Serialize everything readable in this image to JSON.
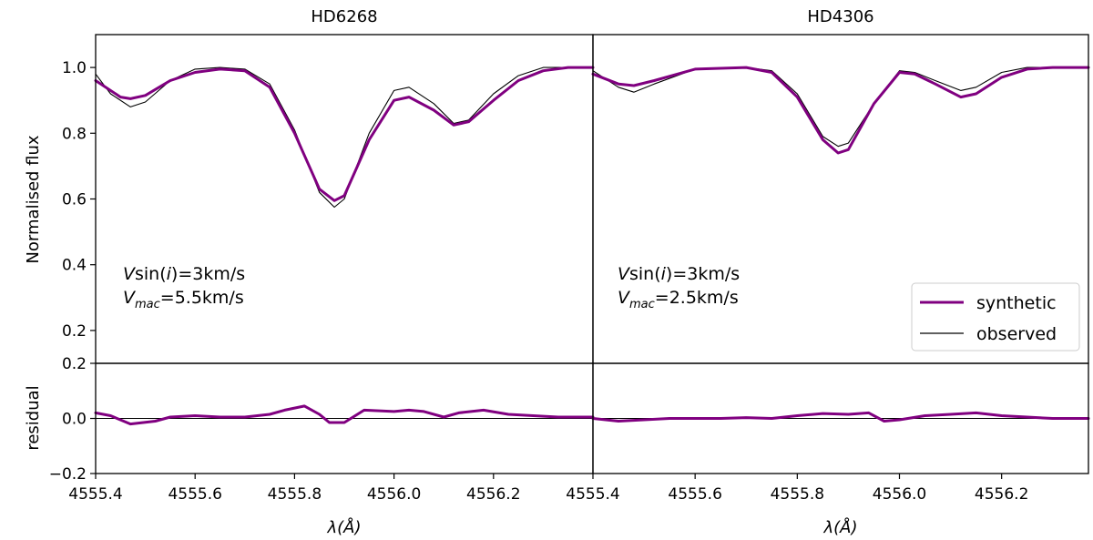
{
  "chart_data": [
    {
      "type": "line",
      "panel": "top-left",
      "title": "HD6268",
      "xlabel": "",
      "ylabel": "Normalised flux",
      "xlim": [
        4555.4,
        4556.4
      ],
      "ylim": [
        0.1,
        1.1
      ],
      "yticks": [
        0.2,
        0.4,
        0.6,
        0.8,
        1.0
      ],
      "ytick_labels": [
        "0.2",
        "0.4",
        "0.6",
        "0.8",
        "1.0"
      ],
      "annotation": {
        "vsini": "3km/s",
        "vmac": "5.5km/s"
      },
      "series": [
        {
          "name": "synthetic",
          "color": "#800080",
          "x": [
            4555.4,
            4555.45,
            4555.47,
            4555.5,
            4555.55,
            4555.6,
            4555.65,
            4555.7,
            4555.75,
            4555.8,
            4555.85,
            4555.88,
            4555.9,
            4555.95,
            4556.0,
            4556.03,
            4556.08,
            4556.12,
            4556.15,
            4556.2,
            4556.25,
            4556.3,
            4556.35,
            4556.4
          ],
          "y": [
            0.96,
            0.91,
            0.905,
            0.915,
            0.96,
            0.985,
            0.995,
            0.99,
            0.94,
            0.8,
            0.63,
            0.595,
            0.61,
            0.78,
            0.9,
            0.91,
            0.87,
            0.825,
            0.835,
            0.9,
            0.96,
            0.99,
            1.0,
            1.0
          ]
        },
        {
          "name": "observed",
          "color": "#000000",
          "x": [
            4555.4,
            4555.43,
            4555.47,
            4555.5,
            4555.55,
            4555.6,
            4555.65,
            4555.7,
            4555.75,
            4555.8,
            4555.85,
            4555.88,
            4555.9,
            4555.95,
            4556.0,
            4556.03,
            4556.08,
            4556.12,
            4556.15,
            4556.2,
            4556.25,
            4556.3,
            4556.35,
            4556.4
          ],
          "y": [
            0.98,
            0.92,
            0.88,
            0.895,
            0.96,
            0.995,
            1.0,
            0.995,
            0.95,
            0.81,
            0.62,
            0.575,
            0.6,
            0.8,
            0.93,
            0.94,
            0.89,
            0.83,
            0.84,
            0.92,
            0.975,
            1.0,
            1.0,
            1.0
          ]
        }
      ]
    },
    {
      "type": "line",
      "panel": "top-right",
      "title": "HD4306",
      "xlabel": "",
      "ylabel": "",
      "xlim": [
        4555.4,
        4556.37
      ],
      "ylim": [
        0.1,
        1.1
      ],
      "annotation": {
        "vsini": "3km/s",
        "vmac": "2.5km/s"
      },
      "legend": {
        "placement": "lower-right",
        "entries": [
          "synthetic",
          "observed"
        ]
      },
      "series": [
        {
          "name": "synthetic",
          "color": "#800080",
          "x": [
            4555.4,
            4555.45,
            4555.48,
            4555.52,
            4555.6,
            4555.7,
            4555.75,
            4555.8,
            4555.85,
            4555.88,
            4555.9,
            4555.95,
            4556.0,
            4556.03,
            4556.07,
            4556.12,
            4556.15,
            4556.2,
            4556.25,
            4556.3,
            4556.37
          ],
          "y": [
            0.98,
            0.95,
            0.945,
            0.96,
            0.995,
            1.0,
            0.985,
            0.91,
            0.78,
            0.74,
            0.75,
            0.89,
            0.985,
            0.98,
            0.95,
            0.91,
            0.92,
            0.97,
            0.995,
            1.0,
            1.0
          ]
        },
        {
          "name": "observed",
          "color": "#000000",
          "x": [
            4555.4,
            4555.45,
            4555.48,
            4555.52,
            4555.6,
            4555.7,
            4555.75,
            4555.8,
            4555.85,
            4555.88,
            4555.9,
            4555.95,
            4556.0,
            4556.03,
            4556.07,
            4556.12,
            4556.15,
            4556.2,
            4556.25,
            4556.3,
            4556.37
          ],
          "y": [
            0.99,
            0.94,
            0.925,
            0.95,
            0.995,
            1.0,
            0.99,
            0.92,
            0.79,
            0.76,
            0.77,
            0.89,
            0.99,
            0.985,
            0.96,
            0.93,
            0.94,
            0.985,
            1.0,
            1.0,
            1.0
          ]
        }
      ]
    },
    {
      "type": "line",
      "panel": "bottom-left",
      "xlabel": "λ(Å)",
      "ylabel": "residual",
      "xlim": [
        4555.4,
        4556.4
      ],
      "ylim": [
        -0.2,
        0.2
      ],
      "yticks": [
        -0.2,
        0.0,
        0.2
      ],
      "ytick_labels": [
        "−0.2",
        "0.0",
        "0.2"
      ],
      "xticks": [
        4555.4,
        4555.6,
        4555.8,
        4556.0,
        4556.2
      ],
      "xtick_labels": [
        "4555.4",
        "4555.6",
        "4555.8",
        "4556.0",
        "4556.2"
      ],
      "series": [
        {
          "name": "residual",
          "color": "#800080",
          "x": [
            4555.4,
            4555.43,
            4555.47,
            4555.52,
            4555.55,
            4555.6,
            4555.65,
            4555.7,
            4555.75,
            4555.78,
            4555.82,
            4555.85,
            4555.87,
            4555.9,
            4555.94,
            4556.0,
            4556.03,
            4556.06,
            4556.1,
            4556.13,
            4556.18,
            4556.23,
            4556.28,
            4556.33,
            4556.4
          ],
          "y": [
            0.02,
            0.01,
            -0.02,
            -0.01,
            0.005,
            0.01,
            0.005,
            0.005,
            0.015,
            0.03,
            0.045,
            0.015,
            -0.015,
            -0.015,
            0.03,
            0.025,
            0.03,
            0.025,
            0.005,
            0.02,
            0.03,
            0.015,
            0.01,
            0.005,
            0.005
          ]
        }
      ]
    },
    {
      "type": "line",
      "panel": "bottom-right",
      "xlabel": "λ(Å)",
      "ylabel": "",
      "xlim": [
        4555.4,
        4556.37
      ],
      "ylim": [
        -0.2,
        0.2
      ],
      "xticks": [
        4555.4,
        4555.6,
        4555.8,
        4556.0,
        4556.2
      ],
      "xtick_labels": [
        "4555.4",
        "4555.6",
        "4555.8",
        "4556.0",
        "4556.2"
      ],
      "series": [
        {
          "name": "residual",
          "color": "#800080",
          "x": [
            4555.4,
            4555.45,
            4555.5,
            4555.55,
            4555.6,
            4555.65,
            4555.7,
            4555.75,
            4555.8,
            4555.85,
            4555.9,
            4555.94,
            4555.97,
            4556.0,
            4556.05,
            4556.1,
            4556.15,
            4556.2,
            4556.25,
            4556.3,
            4556.37
          ],
          "y": [
            0.0,
            -0.01,
            -0.005,
            0.0,
            0.0,
            0.0,
            0.003,
            0.0,
            0.01,
            0.018,
            0.015,
            0.02,
            -0.01,
            -0.005,
            0.01,
            0.015,
            0.02,
            0.01,
            0.005,
            0.0,
            0.0
          ]
        }
      ]
    }
  ],
  "legend": {
    "synthetic_label": "synthetic",
    "observed_label": "observed"
  },
  "labels": {
    "title_left": "HD6268",
    "title_right": "HD4306",
    "ylabel_top": "Normalised flux",
    "ylabel_bottom": "residual",
    "xlabel": "λ(Å)",
    "annot_left_line1": "V sin(i)=3km/s",
    "annot_left_line2": "V mac=5.5km/s",
    "annot_right_line1": "V sin(i)=3km/s",
    "annot_right_line2": "V mac=2.5km/s"
  }
}
